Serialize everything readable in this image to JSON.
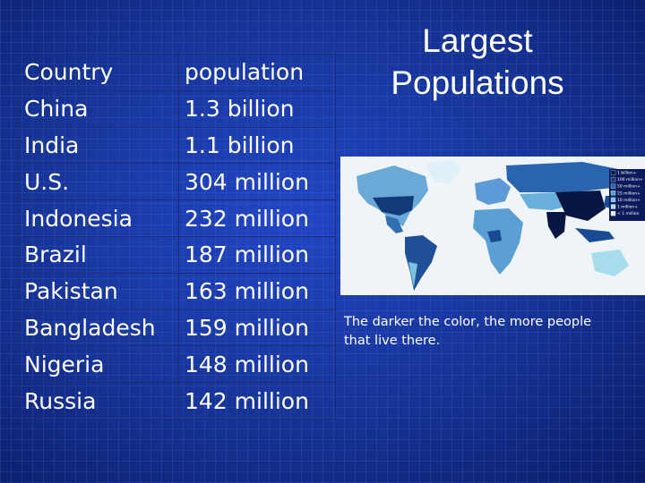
{
  "title": "Largest Populations",
  "table": {
    "rows": [
      [
        "Country",
        "population"
      ],
      [
        "China",
        "1.3 billion"
      ],
      [
        "India",
        "1.1 billion"
      ],
      [
        "U.S.",
        "304 million"
      ],
      [
        "Indonesia",
        "232 million"
      ],
      [
        "Brazil",
        "187 million"
      ],
      [
        "Pakistan",
        "163 million"
      ],
      [
        "Bangladesh",
        "159 million"
      ],
      [
        "Nigeria",
        "148 million"
      ],
      [
        "Russia",
        "142 million"
      ]
    ]
  },
  "map": {
    "legend": [
      "1 billion+",
      "100 million+",
      "50 million+",
      "25 million+",
      "10 million+",
      "1 million+",
      "< 1 million"
    ]
  },
  "caption": "The darker the color, the more people that live there."
}
